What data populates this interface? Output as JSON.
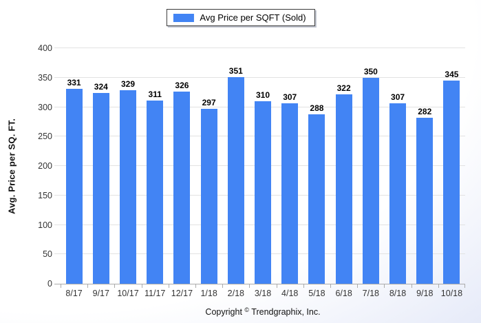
{
  "page": {
    "background_center": "#ffffff",
    "background_edge": "#dde3f6"
  },
  "legend": {
    "label": "Avg Price per SQFT (Sold)"
  },
  "chart_data": {
    "type": "bar",
    "title": "",
    "categories": [
      "8/17",
      "9/17",
      "10/17",
      "11/17",
      "12/17",
      "1/18",
      "2/18",
      "3/18",
      "4/18",
      "5/18",
      "6/18",
      "7/18",
      "8/18",
      "9/18",
      "10/18"
    ],
    "values": [
      331,
      324,
      329,
      311,
      326,
      297,
      351,
      310,
      307,
      288,
      322,
      350,
      307,
      282,
      345
    ],
    "series_name": "Avg Price per SQFT (Sold)",
    "xlabel": "",
    "ylabel": "Avg. Price per SQ. FT.",
    "ylim": [
      0,
      400
    ],
    "ytick_step": 50,
    "grid": "horizontal",
    "legend_position": "top-center",
    "bar_color": "#4284F4",
    "gridline_color": "#e2e2e2",
    "axis_line_color": "#ababab"
  },
  "footer": {
    "prefix": "Copyright",
    "symbol": "©",
    "company": "Trendgraphix, Inc."
  }
}
